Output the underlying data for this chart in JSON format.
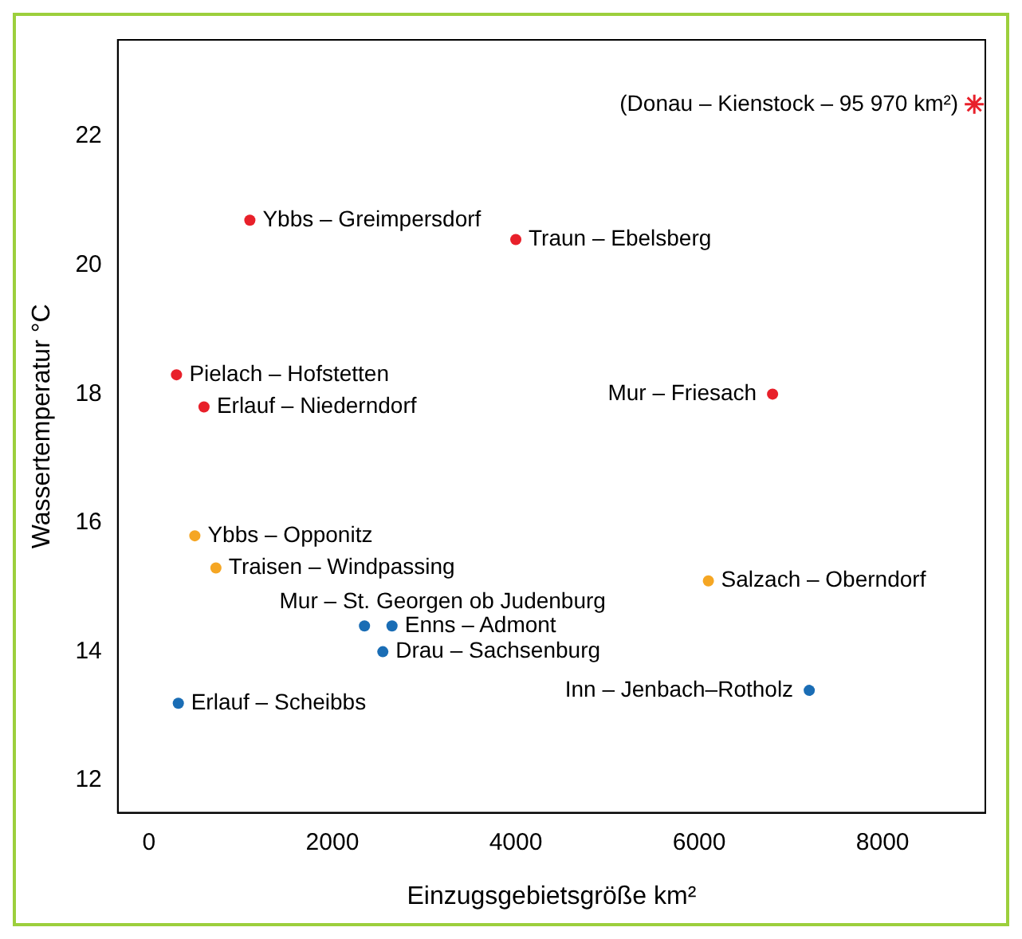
{
  "chart_data": {
    "type": "scatter",
    "xlabel": "Einzugsgebietsgröße km²",
    "ylabel": "Wassertemperatur °C",
    "xlim": [
      -340,
      9120
    ],
    "ylim": [
      11.5,
      23.5
    ],
    "xticks": [
      0,
      2000,
      4000,
      6000,
      8000
    ],
    "yticks": [
      12,
      14,
      16,
      18,
      20,
      22
    ],
    "grid": false,
    "legend": false,
    "marker": "circle",
    "series": [
      {
        "color": "#e8202a",
        "x": [
          1100,
          4000,
          300,
          600,
          6800
        ],
        "values": [
          20.7,
          20.4,
          18.3,
          17.8,
          18.0
        ]
      },
      {
        "color": "#f5a623",
        "x": [
          500,
          730,
          6100
        ],
        "values": [
          15.8,
          15.3,
          15.1
        ]
      },
      {
        "color": "#1a6db5",
        "x": [
          2350,
          2650,
          2550,
          7200,
          320
        ],
        "values": [
          14.4,
          14.4,
          14.0,
          13.4,
          13.2
        ]
      },
      {
        "color": "#e8202a",
        "marker": "cross",
        "x": [
          9000
        ],
        "values": [
          22.5
        ]
      }
    ],
    "annotations": [
      {
        "text": "(Donau – Kienstock – 95 970 km²)",
        "x": 9000,
        "y": 22.5
      },
      {
        "text": "Ybbs – Greimpersdorf",
        "x": 1100,
        "y": 20.7
      },
      {
        "text": "Traun – Ebelsberg",
        "x": 4000,
        "y": 20.4
      },
      {
        "text": "Pielach – Hofstetten",
        "x": 300,
        "y": 18.3
      },
      {
        "text": "Erlauf – Niederndorf",
        "x": 600,
        "y": 17.8
      },
      {
        "text": "Mur – Friesach",
        "x": 6800,
        "y": 18.0
      },
      {
        "text": "Ybbs – Opponitz",
        "x": 500,
        "y": 15.8
      },
      {
        "text": "Traisen – Windpassing",
        "x": 730,
        "y": 15.3
      },
      {
        "text": "Salzach – Oberndorf",
        "x": 6100,
        "y": 15.1
      },
      {
        "text": "Mur – St. Georgen ob Judenburg",
        "x": 2350,
        "y": 14.4
      },
      {
        "text": "Enns – Admont",
        "x": 2650,
        "y": 14.4
      },
      {
        "text": "Drau – Sachsenburg",
        "x": 2550,
        "y": 14.0
      },
      {
        "text": "Inn – Jenbach–Rotholz",
        "x": 7200,
        "y": 13.4
      },
      {
        "text": "Erlauf – Scheibbs",
        "x": 320,
        "y": 13.2
      }
    ]
  }
}
